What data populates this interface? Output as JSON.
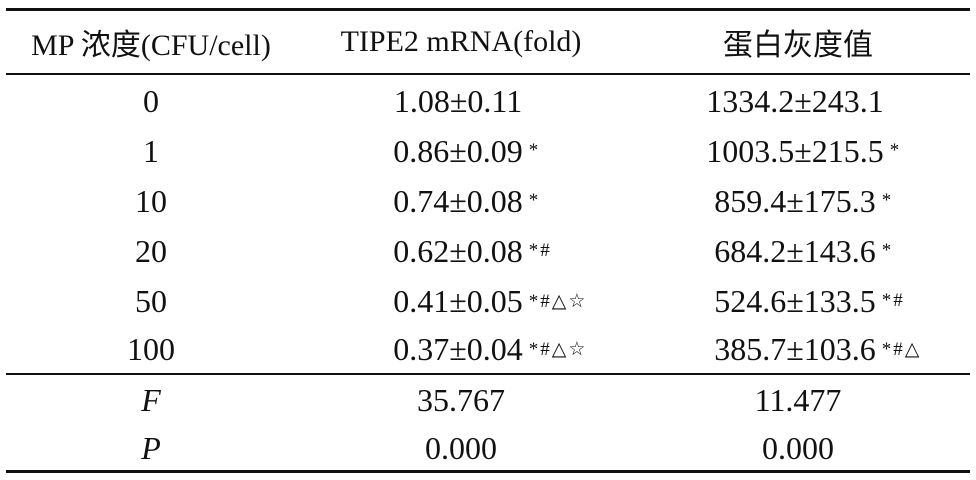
{
  "table": {
    "headers": [
      "MP 浓度(CFU/cell)",
      "TIPE2 mRNA(fold)",
      "蛋白灰度值"
    ],
    "rows": [
      {
        "dose": "0",
        "mrna": "1.08±0.11",
        "mrna_sig": "",
        "protein": "1334.2±243.1",
        "protein_sig": ""
      },
      {
        "dose": "1",
        "mrna": "0.86±0.09",
        "mrna_sig": "*",
        "protein": "1003.5±215.5",
        "protein_sig": "*"
      },
      {
        "dose": "10",
        "mrna": "0.74±0.08",
        "mrna_sig": "*",
        "protein": "859.4±175.3",
        "protein_sig": "*"
      },
      {
        "dose": "20",
        "mrna": "0.62±0.08",
        "mrna_sig": "*#",
        "protein": "684.2±143.6",
        "protein_sig": "*"
      },
      {
        "dose": "50",
        "mrna": "0.41±0.05",
        "mrna_sig": "*#△☆",
        "protein": "524.6±133.5",
        "protein_sig": "*#"
      },
      {
        "dose": "100",
        "mrna": "0.37±0.04",
        "mrna_sig": "*#△☆",
        "protein": "385.7±103.6",
        "protein_sig": "*#△"
      }
    ],
    "stats": [
      {
        "label": "F",
        "mrna": "35.767",
        "protein": "11.477"
      },
      {
        "label": "P",
        "mrna": "0.000",
        "protein": "0.000"
      }
    ]
  }
}
